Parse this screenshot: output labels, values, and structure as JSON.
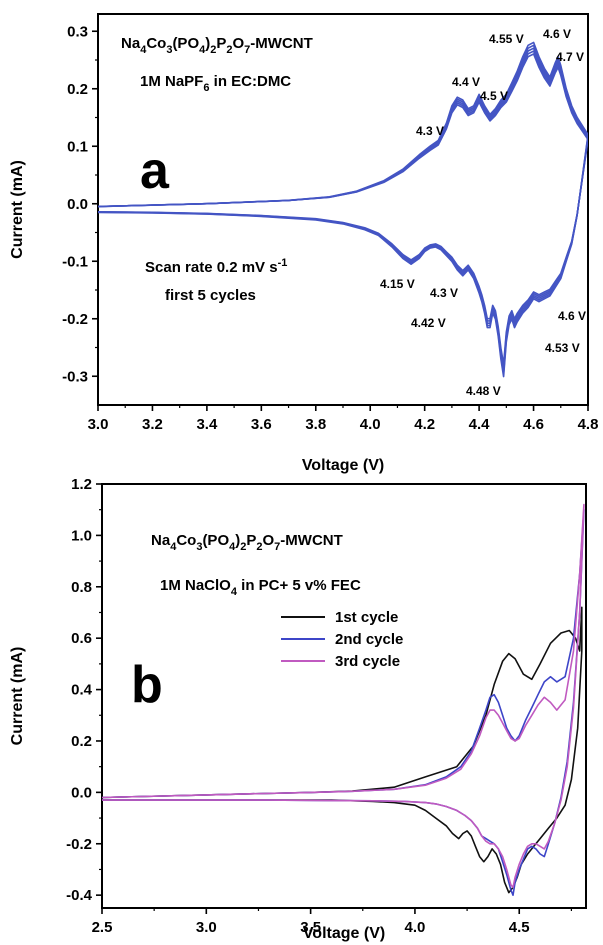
{
  "chart_data": [
    {
      "type": "line",
      "panel_label": "a",
      "xlabel": "Voltage (V)",
      "ylabel": "Current (mA)",
      "xlim": [
        3.0,
        4.8
      ],
      "ylim": [
        -0.35,
        0.33
      ],
      "x_ticks": [
        "3.0",
        "3.2",
        "3.4",
        "3.6",
        "3.8",
        "4.0",
        "4.2",
        "4.4",
        "4.6",
        "4.8"
      ],
      "y_ticks": [
        "0.3",
        "0.2",
        "0.1",
        "0.0",
        "-0.1",
        "-0.2",
        "-0.3"
      ],
      "annotation_lines": [
        {
          "base": "Na",
          "sub": "4",
          "parts": [
            [
              "Na",
              ""
            ],
            [
              "4",
              "sub"
            ],
            [
              "Co",
              ""
            ],
            [
              "3",
              "sub"
            ],
            [
              "(PO",
              ""
            ],
            [
              "4",
              "sub"
            ],
            [
              ")",
              ""
            ],
            [
              "2",
              "sub"
            ],
            [
              "P",
              ""
            ],
            [
              "2",
              "sub"
            ],
            [
              "O",
              ""
            ],
            [
              "7",
              "sub"
            ],
            [
              "-MWCNT",
              ""
            ]
          ]
        },
        {
          "parts": [
            [
              "1M NaPF",
              ""
            ],
            [
              "6",
              "sub"
            ],
            [
              " in EC:DMC",
              ""
            ]
          ]
        },
        {
          "parts": [
            [
              "Scan rate 0.2 mV s",
              ""
            ],
            [
              "-1",
              "sup"
            ]
          ]
        },
        {
          "parts": [
            [
              "first 5 cycles",
              ""
            ]
          ]
        }
      ],
      "peak_labels": [
        "4.3 V",
        "4.4 V",
        "4.5 V",
        "4.55 V",
        "4.6 V",
        "4.7 V",
        "4.15 V",
        "4.3 V",
        "4.42 V",
        "4.48 V",
        "4.53 V",
        "4.6 V"
      ],
      "series_color": "#4455c4",
      "cycles": 5,
      "series": [
        {
          "segment": "oxidation",
          "x": [
            3.0,
            3.4,
            3.7,
            3.85,
            3.95,
            4.05,
            4.12,
            4.18,
            4.22,
            4.25,
            4.28,
            4.3,
            4.32,
            4.34,
            4.36,
            4.38,
            4.4,
            4.42,
            4.44,
            4.46,
            4.48,
            4.5,
            4.52,
            4.54,
            4.56,
            4.58,
            4.6,
            4.62,
            4.64,
            4.66,
            4.68,
            4.69,
            4.7,
            4.72,
            4.74,
            4.76,
            4.78,
            4.8
          ],
          "y": [
            -0.005,
            0.0,
            0.006,
            0.012,
            0.022,
            0.04,
            0.06,
            0.085,
            0.1,
            0.11,
            0.14,
            0.17,
            0.185,
            0.18,
            0.165,
            0.17,
            0.19,
            0.17,
            0.155,
            0.165,
            0.18,
            0.19,
            0.21,
            0.23,
            0.255,
            0.275,
            0.28,
            0.255,
            0.235,
            0.22,
            0.245,
            0.255,
            0.24,
            0.2,
            0.17,
            0.15,
            0.135,
            0.12
          ]
        },
        {
          "segment": "reduction",
          "x": [
            4.8,
            4.78,
            4.76,
            4.74,
            4.72,
            4.7,
            4.68,
            4.66,
            4.64,
            4.62,
            4.6,
            4.58,
            4.56,
            4.54,
            4.53,
            4.52,
            4.51,
            4.5,
            4.49,
            4.48,
            4.47,
            4.46,
            4.45,
            4.44,
            4.43,
            4.42,
            4.41,
            4.4,
            4.38,
            4.36,
            4.34,
            4.32,
            4.3,
            4.28,
            4.26,
            4.24,
            4.22,
            4.2,
            4.18,
            4.15,
            4.12,
            4.08,
            4.03,
            3.98,
            3.9,
            3.8,
            3.6,
            3.4,
            3.2,
            3.0
          ],
          "y": [
            0.12,
            0.05,
            -0.02,
            -0.07,
            -0.1,
            -0.13,
            -0.145,
            -0.16,
            -0.165,
            -0.17,
            -0.165,
            -0.18,
            -0.19,
            -0.205,
            -0.215,
            -0.2,
            -0.21,
            -0.24,
            -0.3,
            -0.27,
            -0.23,
            -0.2,
            -0.19,
            -0.215,
            -0.215,
            -0.19,
            -0.17,
            -0.155,
            -0.13,
            -0.115,
            -0.125,
            -0.115,
            -0.1,
            -0.09,
            -0.08,
            -0.075,
            -0.077,
            -0.083,
            -0.095,
            -0.105,
            -0.095,
            -0.075,
            -0.055,
            -0.045,
            -0.035,
            -0.028,
            -0.022,
            -0.018,
            -0.016,
            -0.015
          ]
        }
      ]
    },
    {
      "type": "line",
      "panel_label": "b",
      "xlabel": "Voltage (V)",
      "ylabel": "Current (mA)",
      "xlim": [
        2.5,
        4.82
      ],
      "ylim": [
        -0.45,
        1.2
      ],
      "x_ticks": [
        "2.5",
        "3.0",
        "3.5",
        "4.0",
        "4.5"
      ],
      "y_ticks": [
        "1.2",
        "1.0",
        "0.8",
        "0.6",
        "0.4",
        "0.2",
        "0.0",
        "-0.2",
        "-0.4"
      ],
      "annotation_lines": [
        {
          "parts": [
            [
              "Na",
              ""
            ],
            [
              "4",
              "sub"
            ],
            [
              "Co",
              ""
            ],
            [
              "3",
              "sub"
            ],
            [
              "(PO",
              ""
            ],
            [
              "4",
              "sub"
            ],
            [
              ")",
              ""
            ],
            [
              "2",
              "sub"
            ],
            [
              "P",
              ""
            ],
            [
              "2",
              "sub"
            ],
            [
              "O",
              ""
            ],
            [
              "7",
              "sub"
            ],
            [
              "-MWCNT",
              ""
            ]
          ]
        },
        {
          "parts": [
            [
              "1M NaClO",
              ""
            ],
            [
              "4",
              "sub"
            ],
            [
              " in PC+ 5 v% FEC",
              ""
            ]
          ]
        }
      ],
      "legend": [
        "1st cycle",
        "2nd cycle",
        "3rd cycle"
      ],
      "series": [
        {
          "name": "1st cycle",
          "color": "#111111",
          "x": [
            2.5,
            3.0,
            3.5,
            3.7,
            3.9,
            4.05,
            4.2,
            4.28,
            4.34,
            4.38,
            4.42,
            4.45,
            4.48,
            4.52,
            4.56,
            4.6,
            4.65,
            4.7,
            4.74,
            4.77,
            4.79,
            4.8,
            4.8,
            4.78,
            4.75,
            4.72,
            4.68,
            4.64,
            4.6,
            4.57,
            4.54,
            4.51,
            4.49,
            4.47,
            4.45,
            4.43,
            4.41,
            4.39,
            4.37,
            4.35,
            4.33,
            4.31,
            4.29,
            4.27,
            4.25,
            4.23,
            4.21,
            4.18,
            4.15,
            4.1,
            4.05,
            4.0,
            3.9,
            3.8,
            3.6,
            3.3,
            3.0,
            2.7,
            2.5
          ],
          "y": [
            -0.02,
            -0.01,
            0.0,
            0.005,
            0.02,
            0.06,
            0.1,
            0.18,
            0.3,
            0.42,
            0.51,
            0.54,
            0.52,
            0.46,
            0.44,
            0.5,
            0.58,
            0.62,
            0.63,
            0.6,
            0.55,
            0.72,
            0.55,
            0.25,
            0.05,
            -0.05,
            -0.1,
            -0.14,
            -0.18,
            -0.21,
            -0.24,
            -0.28,
            -0.33,
            -0.37,
            -0.39,
            -0.35,
            -0.28,
            -0.24,
            -0.22,
            -0.25,
            -0.27,
            -0.25,
            -0.21,
            -0.17,
            -0.15,
            -0.16,
            -0.18,
            -0.16,
            -0.13,
            -0.1,
            -0.07,
            -0.05,
            -0.04,
            -0.035,
            -0.03,
            -0.03,
            -0.03,
            -0.03,
            -0.03
          ]
        },
        {
          "name": "2nd cycle",
          "color": "#3d45c8",
          "x": [
            2.5,
            3.0,
            3.5,
            3.7,
            3.9,
            4.05,
            4.15,
            4.22,
            4.27,
            4.31,
            4.34,
            4.36,
            4.38,
            4.4,
            4.42,
            4.44,
            4.46,
            4.48,
            4.5,
            4.53,
            4.56,
            4.59,
            4.62,
            4.65,
            4.68,
            4.72,
            4.76,
            4.79,
            4.81,
            4.81,
            4.79,
            4.76,
            4.73,
            4.7,
            4.67,
            4.64,
            4.62,
            4.6,
            4.58,
            4.56,
            4.54,
            4.52,
            4.5,
            4.48,
            4.47,
            4.46,
            4.44,
            4.42,
            4.4,
            4.38,
            4.36,
            4.34,
            4.32,
            4.3,
            4.27,
            4.24,
            4.2,
            4.15,
            4.1,
            4.05,
            3.95,
            3.8,
            3.6,
            3.3,
            3.0,
            2.7,
            2.5
          ],
          "y": [
            -0.02,
            -0.01,
            0.0,
            0.004,
            0.012,
            0.03,
            0.06,
            0.1,
            0.16,
            0.25,
            0.32,
            0.37,
            0.38,
            0.35,
            0.3,
            0.25,
            0.22,
            0.2,
            0.22,
            0.28,
            0.33,
            0.38,
            0.43,
            0.45,
            0.43,
            0.45,
            0.6,
            0.85,
            1.1,
            1.1,
            0.7,
            0.35,
            0.12,
            -0.02,
            -0.12,
            -0.2,
            -0.25,
            -0.24,
            -0.22,
            -0.21,
            -0.22,
            -0.26,
            -0.3,
            -0.35,
            -0.4,
            -0.38,
            -0.32,
            -0.27,
            -0.22,
            -0.2,
            -0.19,
            -0.18,
            -0.17,
            -0.14,
            -0.11,
            -0.09,
            -0.07,
            -0.055,
            -0.045,
            -0.04,
            -0.035,
            -0.033,
            -0.032,
            -0.03,
            -0.03,
            -0.03,
            -0.03
          ]
        },
        {
          "name": "3rd cycle",
          "color": "#c05ac0",
          "x": [
            2.5,
            3.0,
            3.5,
            3.7,
            3.9,
            4.05,
            4.15,
            4.22,
            4.27,
            4.31,
            4.34,
            4.36,
            4.38,
            4.4,
            4.42,
            4.44,
            4.46,
            4.48,
            4.5,
            4.53,
            4.56,
            4.59,
            4.62,
            4.65,
            4.68,
            4.72,
            4.76,
            4.79,
            4.81,
            4.81,
            4.79,
            4.76,
            4.73,
            4.7,
            4.67,
            4.64,
            4.62,
            4.6,
            4.58,
            4.56,
            4.54,
            4.52,
            4.5,
            4.48,
            4.47,
            4.46,
            4.44,
            4.42,
            4.4,
            4.38,
            4.36,
            4.34,
            4.32,
            4.3,
            4.27,
            4.24,
            4.2,
            4.15,
            4.1,
            4.05,
            3.95,
            3.8,
            3.6,
            3.3,
            3.0,
            2.7,
            2.5
          ],
          "y": [
            -0.02,
            -0.01,
            0.0,
            0.004,
            0.012,
            0.028,
            0.055,
            0.09,
            0.15,
            0.22,
            0.29,
            0.32,
            0.32,
            0.3,
            0.27,
            0.24,
            0.21,
            0.2,
            0.21,
            0.26,
            0.3,
            0.34,
            0.37,
            0.35,
            0.32,
            0.36,
            0.55,
            0.85,
            1.12,
            1.12,
            0.7,
            0.33,
            0.1,
            -0.03,
            -0.12,
            -0.19,
            -0.22,
            -0.21,
            -0.2,
            -0.2,
            -0.21,
            -0.24,
            -0.28,
            -0.33,
            -0.37,
            -0.36,
            -0.3,
            -0.25,
            -0.22,
            -0.2,
            -0.2,
            -0.19,
            -0.17,
            -0.14,
            -0.11,
            -0.09,
            -0.07,
            -0.055,
            -0.045,
            -0.04,
            -0.035,
            -0.033,
            -0.032,
            -0.03,
            -0.03,
            -0.03,
            -0.03
          ]
        }
      ]
    }
  ]
}
